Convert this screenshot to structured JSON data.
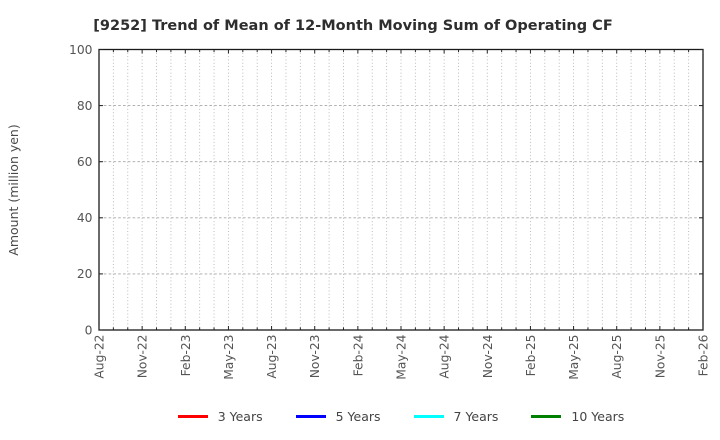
{
  "chart_data": {
    "type": "line",
    "title": "[9252]  Trend of Mean of 12-Month Moving Sum of Operating CF",
    "ylabel": "Amount (million yen)",
    "xlabel": "",
    "ylim": [
      0,
      100
    ],
    "yticks": [
      0,
      20,
      40,
      60,
      80,
      100
    ],
    "x_tick_labels": [
      "Aug-22",
      "Nov-22",
      "Feb-23",
      "May-23",
      "Aug-23",
      "Nov-23",
      "Feb-24",
      "May-24",
      "Aug-24",
      "Nov-24",
      "Feb-25",
      "May-25",
      "Aug-25",
      "Nov-25",
      "Feb-26"
    ],
    "x_months_between_ticks": 3,
    "x_months_total": 42,
    "grid": true,
    "legend_position": "bottom",
    "series": [
      {
        "name": "3 Years",
        "color": "#ff0000",
        "values": []
      },
      {
        "name": "5 Years",
        "color": "#0000ff",
        "values": []
      },
      {
        "name": "7 Years",
        "color": "#00ffff",
        "values": []
      },
      {
        "name": "10 Years",
        "color": "#008000",
        "values": []
      }
    ]
  }
}
